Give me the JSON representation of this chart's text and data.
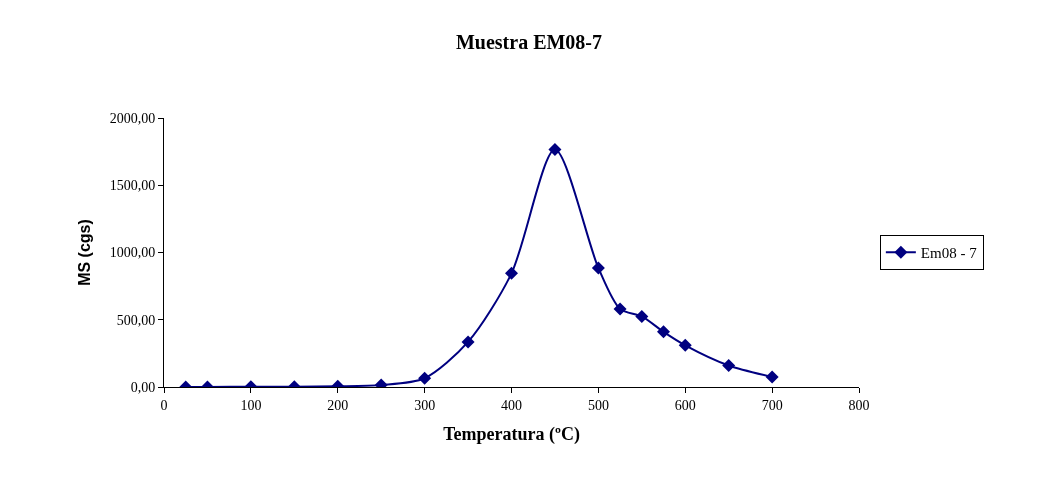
{
  "chart_data": {
    "type": "line",
    "title": "Muestra EM08-7",
    "xlabel": "Temperatura (ºC)",
    "ylabel": "MS (cgs)",
    "x": [
      25,
      50,
      100,
      150,
      200,
      250,
      300,
      350,
      400,
      450,
      500,
      525,
      550,
      575,
      600,
      650,
      700
    ],
    "series": [
      {
        "name": "Em08 - 7",
        "color": "#000080",
        "values": [
          0,
          0,
          2,
          2,
          5,
          15,
          65,
          335,
          845,
          1765,
          885,
          580,
          525,
          410,
          310,
          160,
          75
        ]
      }
    ],
    "xlim": [
      0,
      800
    ],
    "xticks": [
      0,
      100,
      200,
      300,
      400,
      500,
      600,
      700,
      800
    ],
    "ylim": [
      0,
      2000
    ],
    "yticks": [
      {
        "value": 0,
        "label": "0,00"
      },
      {
        "value": 500,
        "label": "500,00"
      },
      {
        "value": 1000,
        "label": "1000,00"
      },
      {
        "value": 1500,
        "label": "1500,00"
      },
      {
        "value": 2000,
        "label": "2000,00"
      }
    ],
    "legend": "right",
    "marker": "diamond",
    "line_style": "solid"
  }
}
